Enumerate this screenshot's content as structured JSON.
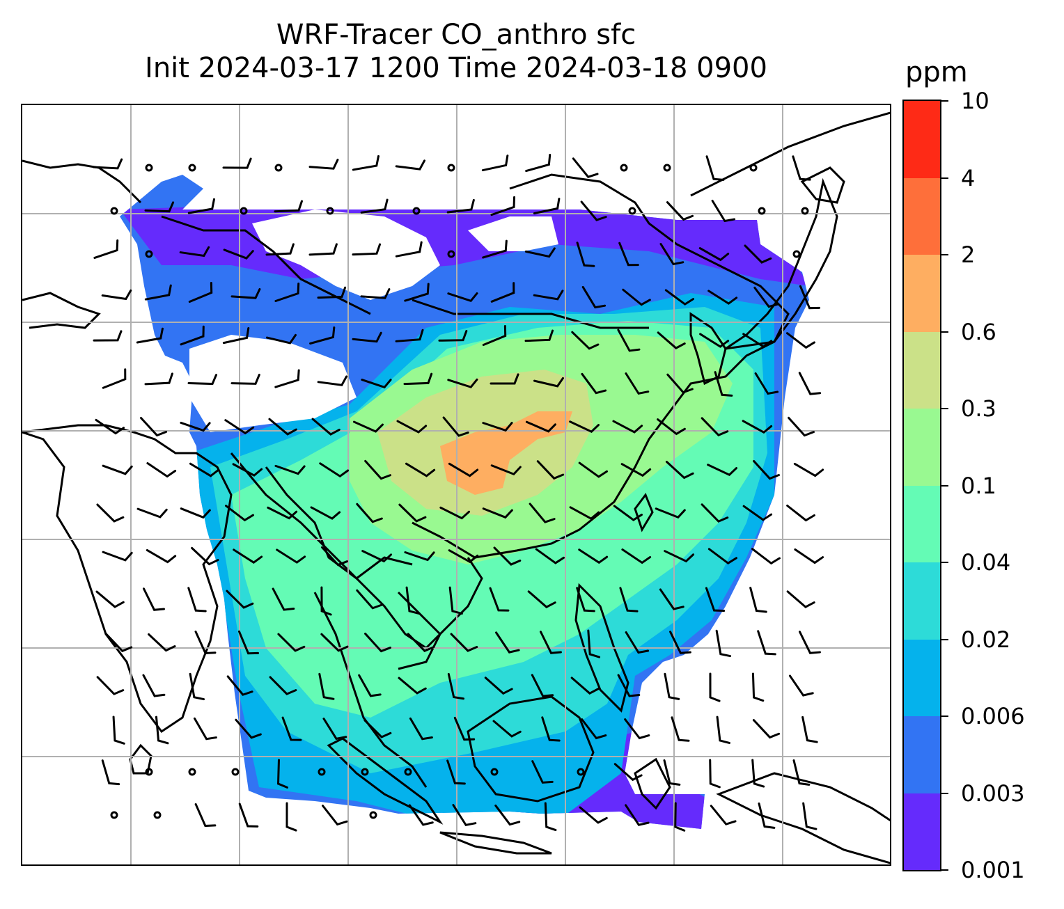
{
  "title": {
    "line1": "WRF-Tracer CO_anthro sfc",
    "line2": "Init 2024-03-17 1200 Time 2024-03-18 0900"
  },
  "colorbar": {
    "unit": "ppm",
    "levels": [
      "0.001",
      "0.003",
      "0.006",
      "0.02",
      "0.04",
      "0.1",
      "0.3",
      "0.6",
      "2",
      "4",
      "10"
    ],
    "colors": [
      "#652bfc",
      "#3274f3",
      "#05b2ec",
      "#2ddbd8",
      "#64fbb5",
      "#99f991",
      "#cbe188",
      "#feae61",
      "#fe6f3a",
      "#fe2a16"
    ]
  },
  "map": {
    "coastline_color": "#000000",
    "gridline_color": "#b0b0b0",
    "barb_color": "#000000"
  }
}
